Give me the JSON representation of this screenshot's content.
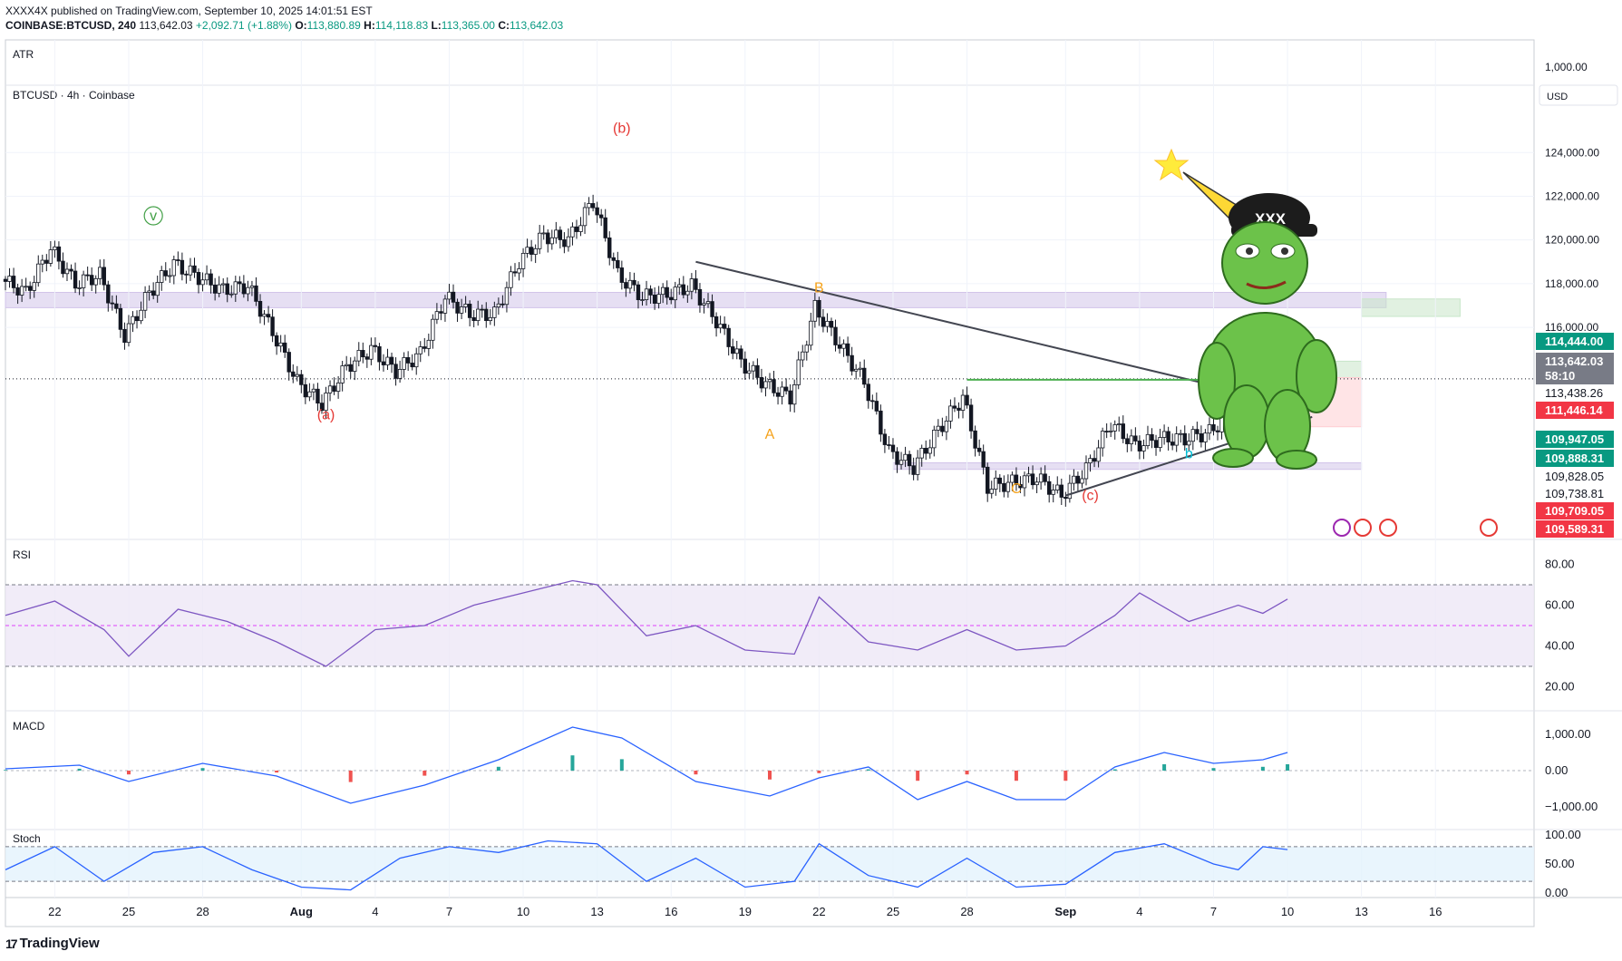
{
  "header": {
    "line1": "XXXX4X published on TradingView.com, September 10, 2025 14:01:51 EST",
    "symbol": "COINBASE:BTCUSD, 240",
    "last": "113,642.03",
    "change": "+2,092.71 (+1.88%)",
    "o_label": "O:",
    "o": "113,880.89",
    "h_label": "H:",
    "h": "114,118.83",
    "l_label": "L:",
    "l": "113,365.00",
    "c_label": "C:",
    "c": "113,642.03"
  },
  "panes": {
    "atr_label": "ATR",
    "atr_axis": "1,000.00",
    "main_label": "BTCUSD · 4h · Coinbase",
    "currency": "USD",
    "rsi_label": "RSI",
    "macd_label": "MACD",
    "stoch_label": "Stoch"
  },
  "price_badges": [
    {
      "text": "114,444.00",
      "bg": "#089981",
      "fg": "#ffffff"
    },
    {
      "text": "113,642.03",
      "bg": "#787b86",
      "fg": "#ffffff"
    },
    {
      "text": "58:10",
      "bg": "#787b86",
      "fg": "#ffffff"
    },
    {
      "text": "113,438.26",
      "bg": "#ffffff",
      "fg": "#131722"
    },
    {
      "text": "111,446.14",
      "bg": "#f23645",
      "fg": "#ffffff"
    },
    {
      "text": "109,947.05",
      "bg": "#089981",
      "fg": "#ffffff"
    },
    {
      "text": "109,888.31",
      "bg": "#089981",
      "fg": "#ffffff"
    },
    {
      "text": "109,828.05",
      "bg": "#ffffff",
      "fg": "#131722"
    },
    {
      "text": "109,738.81",
      "bg": "#ffffff",
      "fg": "#131722"
    },
    {
      "text": "109,709.05",
      "bg": "#f23645",
      "fg": "#ffffff"
    },
    {
      "text": "109,589.31",
      "bg": "#f23645",
      "fg": "#ffffff"
    }
  ],
  "wave_labels": [
    {
      "text": "(b)",
      "color": "#e53935",
      "date": "2025-08-14",
      "price": 124900
    },
    {
      "text": "(a)",
      "color": "#e53935",
      "date": "2025-08-02",
      "price": 111800
    },
    {
      "text": "(c)",
      "color": "#e53935",
      "date": "2025-09-02",
      "price": 108100
    },
    {
      "text": "B",
      "color": "#f5a21b",
      "date": "2025-08-22",
      "price": 117600
    },
    {
      "text": "A",
      "color": "#f5a21b",
      "date": "2025-08-20",
      "price": 110900
    },
    {
      "text": "C",
      "color": "#f5a21b",
      "date": "2025-08-30",
      "price": 108400
    },
    {
      "text": "c",
      "color": "#00bcd4",
      "date": "2025-09-10",
      "price": 115600
    },
    {
      "text": "b",
      "color": "#00bcd4",
      "date": "2025-09-06",
      "price": 110000
    },
    {
      "text": "v",
      "color": "#43a047",
      "date": "2025-07-26",
      "price": 120900
    }
  ],
  "chart_data": {
    "type": "candlestick",
    "symbol": "BTCUSD",
    "timeframe": "4h",
    "x_ticks": [
      "22",
      "25",
      "28",
      "Aug",
      "4",
      "7",
      "10",
      "13",
      "16",
      "19",
      "22",
      "25",
      "28",
      "Sep",
      "4",
      "7",
      "10",
      "13",
      "16"
    ],
    "x_tick_dates": [
      "2025-07-22",
      "2025-07-25",
      "2025-07-28",
      "2025-08-01",
      "2025-08-04",
      "2025-08-07",
      "2025-08-10",
      "2025-08-13",
      "2025-08-16",
      "2025-08-19",
      "2025-08-22",
      "2025-08-25",
      "2025-08-28",
      "2025-09-01",
      "2025-09-04",
      "2025-09-07",
      "2025-09-10",
      "2025-09-13",
      "2025-09-16"
    ],
    "price_ticks": [
      "124,000.00",
      "122,000.00",
      "120,000.00",
      "118,000.00",
      "116,000.00"
    ],
    "price_tick_values": [
      124000,
      122000,
      120000,
      118000,
      116000
    ],
    "price_range": [
      106500,
      127000
    ],
    "last_price": 113642.03,
    "series_close": [
      [
        "2025-07-20",
        118200
      ],
      [
        "2025-07-21",
        117600
      ],
      [
        "2025-07-22",
        119600
      ],
      [
        "2025-07-23",
        118000
      ],
      [
        "2025-07-24",
        118400
      ],
      [
        "2025-07-25",
        115600
      ],
      [
        "2025-07-26",
        117600
      ],
      [
        "2025-07-27",
        118900
      ],
      [
        "2025-07-28",
        118300
      ],
      [
        "2025-07-29",
        117700
      ],
      [
        "2025-07-30",
        117900
      ],
      [
        "2025-07-31",
        115800
      ],
      [
        "2025-08-01",
        113500
      ],
      [
        "2025-08-02",
        112500
      ],
      [
        "2025-08-03",
        114200
      ],
      [
        "2025-08-04",
        115000
      ],
      [
        "2025-08-05",
        114000
      ],
      [
        "2025-08-06",
        114800
      ],
      [
        "2025-08-07",
        117400
      ],
      [
        "2025-08-08",
        116600
      ],
      [
        "2025-08-09",
        116600
      ],
      [
        "2025-08-10",
        119000
      ],
      [
        "2025-08-11",
        120200
      ],
      [
        "2025-08-12",
        120000
      ],
      [
        "2025-08-13",
        121800
      ],
      [
        "2025-08-14",
        118400
      ],
      [
        "2025-08-15",
        117400
      ],
      [
        "2025-08-16",
        117500
      ],
      [
        "2025-08-17",
        117900
      ],
      [
        "2025-08-18",
        116300
      ],
      [
        "2025-08-19",
        114400
      ],
      [
        "2025-08-20",
        113400
      ],
      [
        "2025-08-21",
        112800
      ],
      [
        "2025-08-22",
        116900
      ],
      [
        "2025-08-23",
        115200
      ],
      [
        "2025-08-24",
        113500
      ],
      [
        "2025-08-25",
        110300
      ],
      [
        "2025-08-26",
        109600
      ],
      [
        "2025-08-27",
        111300
      ],
      [
        "2025-08-28",
        112800
      ],
      [
        "2025-08-29",
        108700
      ],
      [
        "2025-08-30",
        108900
      ],
      [
        "2025-08-31",
        109100
      ],
      [
        "2025-09-01",
        108300
      ],
      [
        "2025-09-02",
        109500
      ],
      [
        "2025-09-03",
        111600
      ],
      [
        "2025-09-04",
        110600
      ],
      [
        "2025-09-05",
        110900
      ],
      [
        "2025-09-06",
        110900
      ],
      [
        "2025-09-07",
        111200
      ],
      [
        "2025-09-08",
        112200
      ],
      [
        "2025-09-09",
        111600
      ],
      [
        "2025-09-10",
        113642
      ]
    ],
    "zones": [
      {
        "name": "resistance-band",
        "from": "2025-07-20",
        "to": "2025-09-14",
        "low": 116900,
        "high": 117600,
        "color": "#d1c4e9"
      },
      {
        "name": "support-band",
        "from": "2025-08-25",
        "to": "2025-09-13",
        "low": 109500,
        "high": 109800,
        "color": "#d1c4e9"
      },
      {
        "name": "target-zone",
        "from": "2025-09-13",
        "to": "2025-09-17",
        "low": 116500,
        "high": 117300,
        "color": "#c8e6c9"
      },
      {
        "name": "reward-zone",
        "from": "2025-09-10",
        "to": "2025-09-13",
        "low": 113700,
        "high": 114450,
        "color": "#c8e6c9"
      },
      {
        "name": "risk-zone",
        "from": "2025-09-10",
        "to": "2025-09-13",
        "low": 111450,
        "high": 113700,
        "color": "#ffcdd2"
      }
    ],
    "trendlines": [
      {
        "name": "downtrend-line",
        "from": [
          "2025-08-17",
          119000
        ],
        "to": [
          "2025-09-09",
          112800
        ]
      },
      {
        "name": "uptrend-line",
        "from": [
          "2025-09-01",
          108300
        ],
        "to": [
          "2025-09-11",
          111900
        ]
      },
      {
        "name": "breakout-level",
        "from": [
          "2025-08-28",
          113600
        ],
        "to": [
          "2025-09-09",
          113600
        ]
      }
    ],
    "rsi": {
      "axis_ticks": [
        "80.00",
        "60.00",
        "40.00",
        "20.00"
      ],
      "axis_values": [
        80,
        60,
        40,
        20
      ],
      "band": [
        30,
        70
      ],
      "mid": 50,
      "values": [
        [
          "2025-07-20",
          55
        ],
        [
          "2025-07-22",
          62
        ],
        [
          "2025-07-24",
          48
        ],
        [
          "2025-07-25",
          35
        ],
        [
          "2025-07-27",
          58
        ],
        [
          "2025-07-29",
          52
        ],
        [
          "2025-07-31",
          42
        ],
        [
          "2025-08-02",
          30
        ],
        [
          "2025-08-04",
          48
        ],
        [
          "2025-08-06",
          50
        ],
        [
          "2025-08-08",
          60
        ],
        [
          "2025-08-10",
          66
        ],
        [
          "2025-08-12",
          72
        ],
        [
          "2025-08-13",
          70
        ],
        [
          "2025-08-15",
          45
        ],
        [
          "2025-08-17",
          50
        ],
        [
          "2025-08-19",
          38
        ],
        [
          "2025-08-21",
          36
        ],
        [
          "2025-08-22",
          64
        ],
        [
          "2025-08-24",
          42
        ],
        [
          "2025-08-26",
          38
        ],
        [
          "2025-08-28",
          48
        ],
        [
          "2025-08-30",
          38
        ],
        [
          "2025-09-01",
          40
        ],
        [
          "2025-09-03",
          55
        ],
        [
          "2025-09-04",
          66
        ],
        [
          "2025-09-06",
          52
        ],
        [
          "2025-09-08",
          60
        ],
        [
          "2025-09-09",
          56
        ],
        [
          "2025-09-10",
          63
        ]
      ]
    },
    "macd": {
      "axis_ticks": [
        "1,000.00",
        "0.00",
        "−1,000.00"
      ],
      "axis_values": [
        1000,
        0,
        -1000
      ],
      "values": [
        [
          "2025-07-20",
          50
        ],
        [
          "2025-07-23",
          150
        ],
        [
          "2025-07-25",
          -300
        ],
        [
          "2025-07-28",
          200
        ],
        [
          "2025-07-31",
          -150
        ],
        [
          "2025-08-03",
          -900
        ],
        [
          "2025-08-06",
          -400
        ],
        [
          "2025-08-09",
          300
        ],
        [
          "2025-08-12",
          1200
        ],
        [
          "2025-08-14",
          900
        ],
        [
          "2025-08-17",
          -300
        ],
        [
          "2025-08-20",
          -700
        ],
        [
          "2025-08-22",
          -200
        ],
        [
          "2025-08-24",
          100
        ],
        [
          "2025-08-26",
          -800
        ],
        [
          "2025-08-28",
          -300
        ],
        [
          "2025-08-30",
          -800
        ],
        [
          "2025-09-01",
          -800
        ],
        [
          "2025-09-03",
          100
        ],
        [
          "2025-09-05",
          500
        ],
        [
          "2025-09-07",
          200
        ],
        [
          "2025-09-09",
          300
        ],
        [
          "2025-09-10",
          500
        ]
      ]
    },
    "stoch": {
      "axis_ticks": [
        "100.00",
        "50.00",
        "0.00"
      ],
      "axis_values": [
        100,
        50,
        0
      ],
      "band": [
        20,
        80
      ],
      "values": [
        [
          "2025-07-20",
          40
        ],
        [
          "2025-07-22",
          80
        ],
        [
          "2025-07-24",
          20
        ],
        [
          "2025-07-26",
          70
        ],
        [
          "2025-07-28",
          80
        ],
        [
          "2025-07-30",
          40
        ],
        [
          "2025-08-01",
          10
        ],
        [
          "2025-08-03",
          5
        ],
        [
          "2025-08-05",
          60
        ],
        [
          "2025-08-07",
          80
        ],
        [
          "2025-08-09",
          70
        ],
        [
          "2025-08-11",
          90
        ],
        [
          "2025-08-13",
          85
        ],
        [
          "2025-08-15",
          20
        ],
        [
          "2025-08-17",
          60
        ],
        [
          "2025-08-19",
          10
        ],
        [
          "2025-08-21",
          20
        ],
        [
          "2025-08-22",
          85
        ],
        [
          "2025-08-24",
          30
        ],
        [
          "2025-08-26",
          10
        ],
        [
          "2025-08-28",
          60
        ],
        [
          "2025-08-30",
          10
        ],
        [
          "2025-09-01",
          15
        ],
        [
          "2025-09-03",
          70
        ],
        [
          "2025-09-05",
          85
        ],
        [
          "2025-09-07",
          50
        ],
        [
          "2025-09-08",
          40
        ],
        [
          "2025-09-09",
          80
        ],
        [
          "2025-09-10",
          75
        ]
      ]
    }
  },
  "colors": {
    "up": "#089981",
    "down": "#131722",
    "rsi_line": "#7e57c2",
    "rsi_ma": "#fbc02d",
    "macd_line": "#2962ff",
    "signal_line": "#ff6d00",
    "stoch_k": "#2962ff",
    "trend_green": "#4caf50"
  },
  "branding": {
    "logo_text": "TradingView",
    "mark": "17"
  }
}
